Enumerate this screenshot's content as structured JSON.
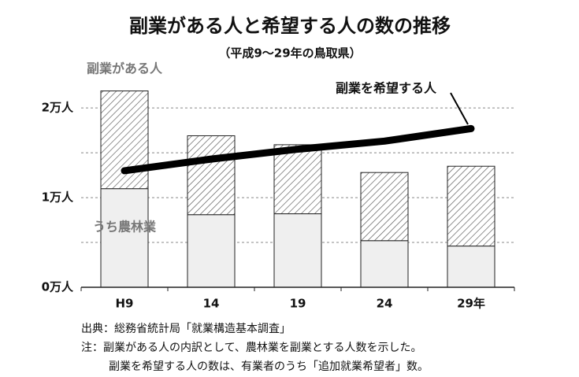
{
  "chart_data": {
    "type": "bar+line",
    "title": "副業がある人と希望する人の数の推移",
    "subtitle": "（平成9～29年の鳥取県）",
    "categories": [
      "H9",
      "14",
      "19",
      "24",
      "29年"
    ],
    "series": [
      {
        "name": "うち農林業",
        "kind": "bar",
        "color": "#efefef",
        "values": [
          1.1,
          0.81,
          0.82,
          0.52,
          0.46
        ]
      },
      {
        "name": "副業がある人",
        "kind": "bar",
        "color": "#555555",
        "hatch": true,
        "values": [
          1.09,
          0.88,
          0.77,
          0.76,
          0.89
        ]
      },
      {
        "name": "副業を希望する人",
        "kind": "line",
        "color": "#000000",
        "values": [
          1.3,
          1.43,
          1.54,
          1.63,
          1.77
        ]
      }
    ],
    "ylim": [
      0,
      2.3
    ],
    "yticks": [
      {
        "value": 0,
        "label": "0万人"
      },
      {
        "value": 1,
        "label": "1万人"
      },
      {
        "value": 2,
        "label": "2万人"
      }
    ],
    "minor_grid": [
      0.5,
      1.5
    ],
    "grid": true,
    "notes": [
      "出典：総務省統計局「就業構造基本調査」",
      "注：副業がある人の内訳として、農林業を副業とする人数を示した。",
      "副業を希望する人の数は、有業者のうち「追加就業希望者」数。"
    ]
  }
}
